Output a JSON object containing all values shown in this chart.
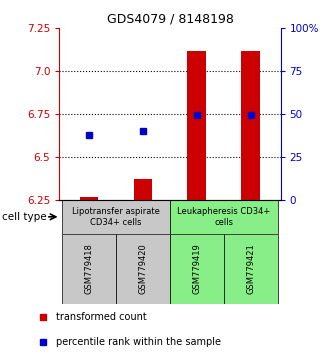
{
  "title": "GDS4079 / 8148198",
  "samples": [
    "GSM779418",
    "GSM779420",
    "GSM779419",
    "GSM779421"
  ],
  "red_values": [
    6.27,
    6.37,
    7.12,
    7.12
  ],
  "blue_values": [
    6.63,
    6.65,
    6.748,
    6.743
  ],
  "y_min": 6.25,
  "y_max": 7.25,
  "y_ticks_left": [
    6.25,
    6.5,
    6.75,
    7.0,
    7.25
  ],
  "y_ticks_right": [
    0,
    25,
    50,
    75,
    100
  ],
  "red_color": "#cc0000",
  "blue_color": "#0000cc",
  "group1_label": "Lipotransfer aspirate\nCD34+ cells",
  "group2_label": "Leukapheresis CD34+\ncells",
  "group1_color": "#c8c8c8",
  "group2_color": "#88ee88",
  "cell_type_label": "cell type",
  "legend_red": "transformed count",
  "legend_blue": "percentile rank within the sample",
  "bar_width": 0.35,
  "bar_bottom": 6.25
}
